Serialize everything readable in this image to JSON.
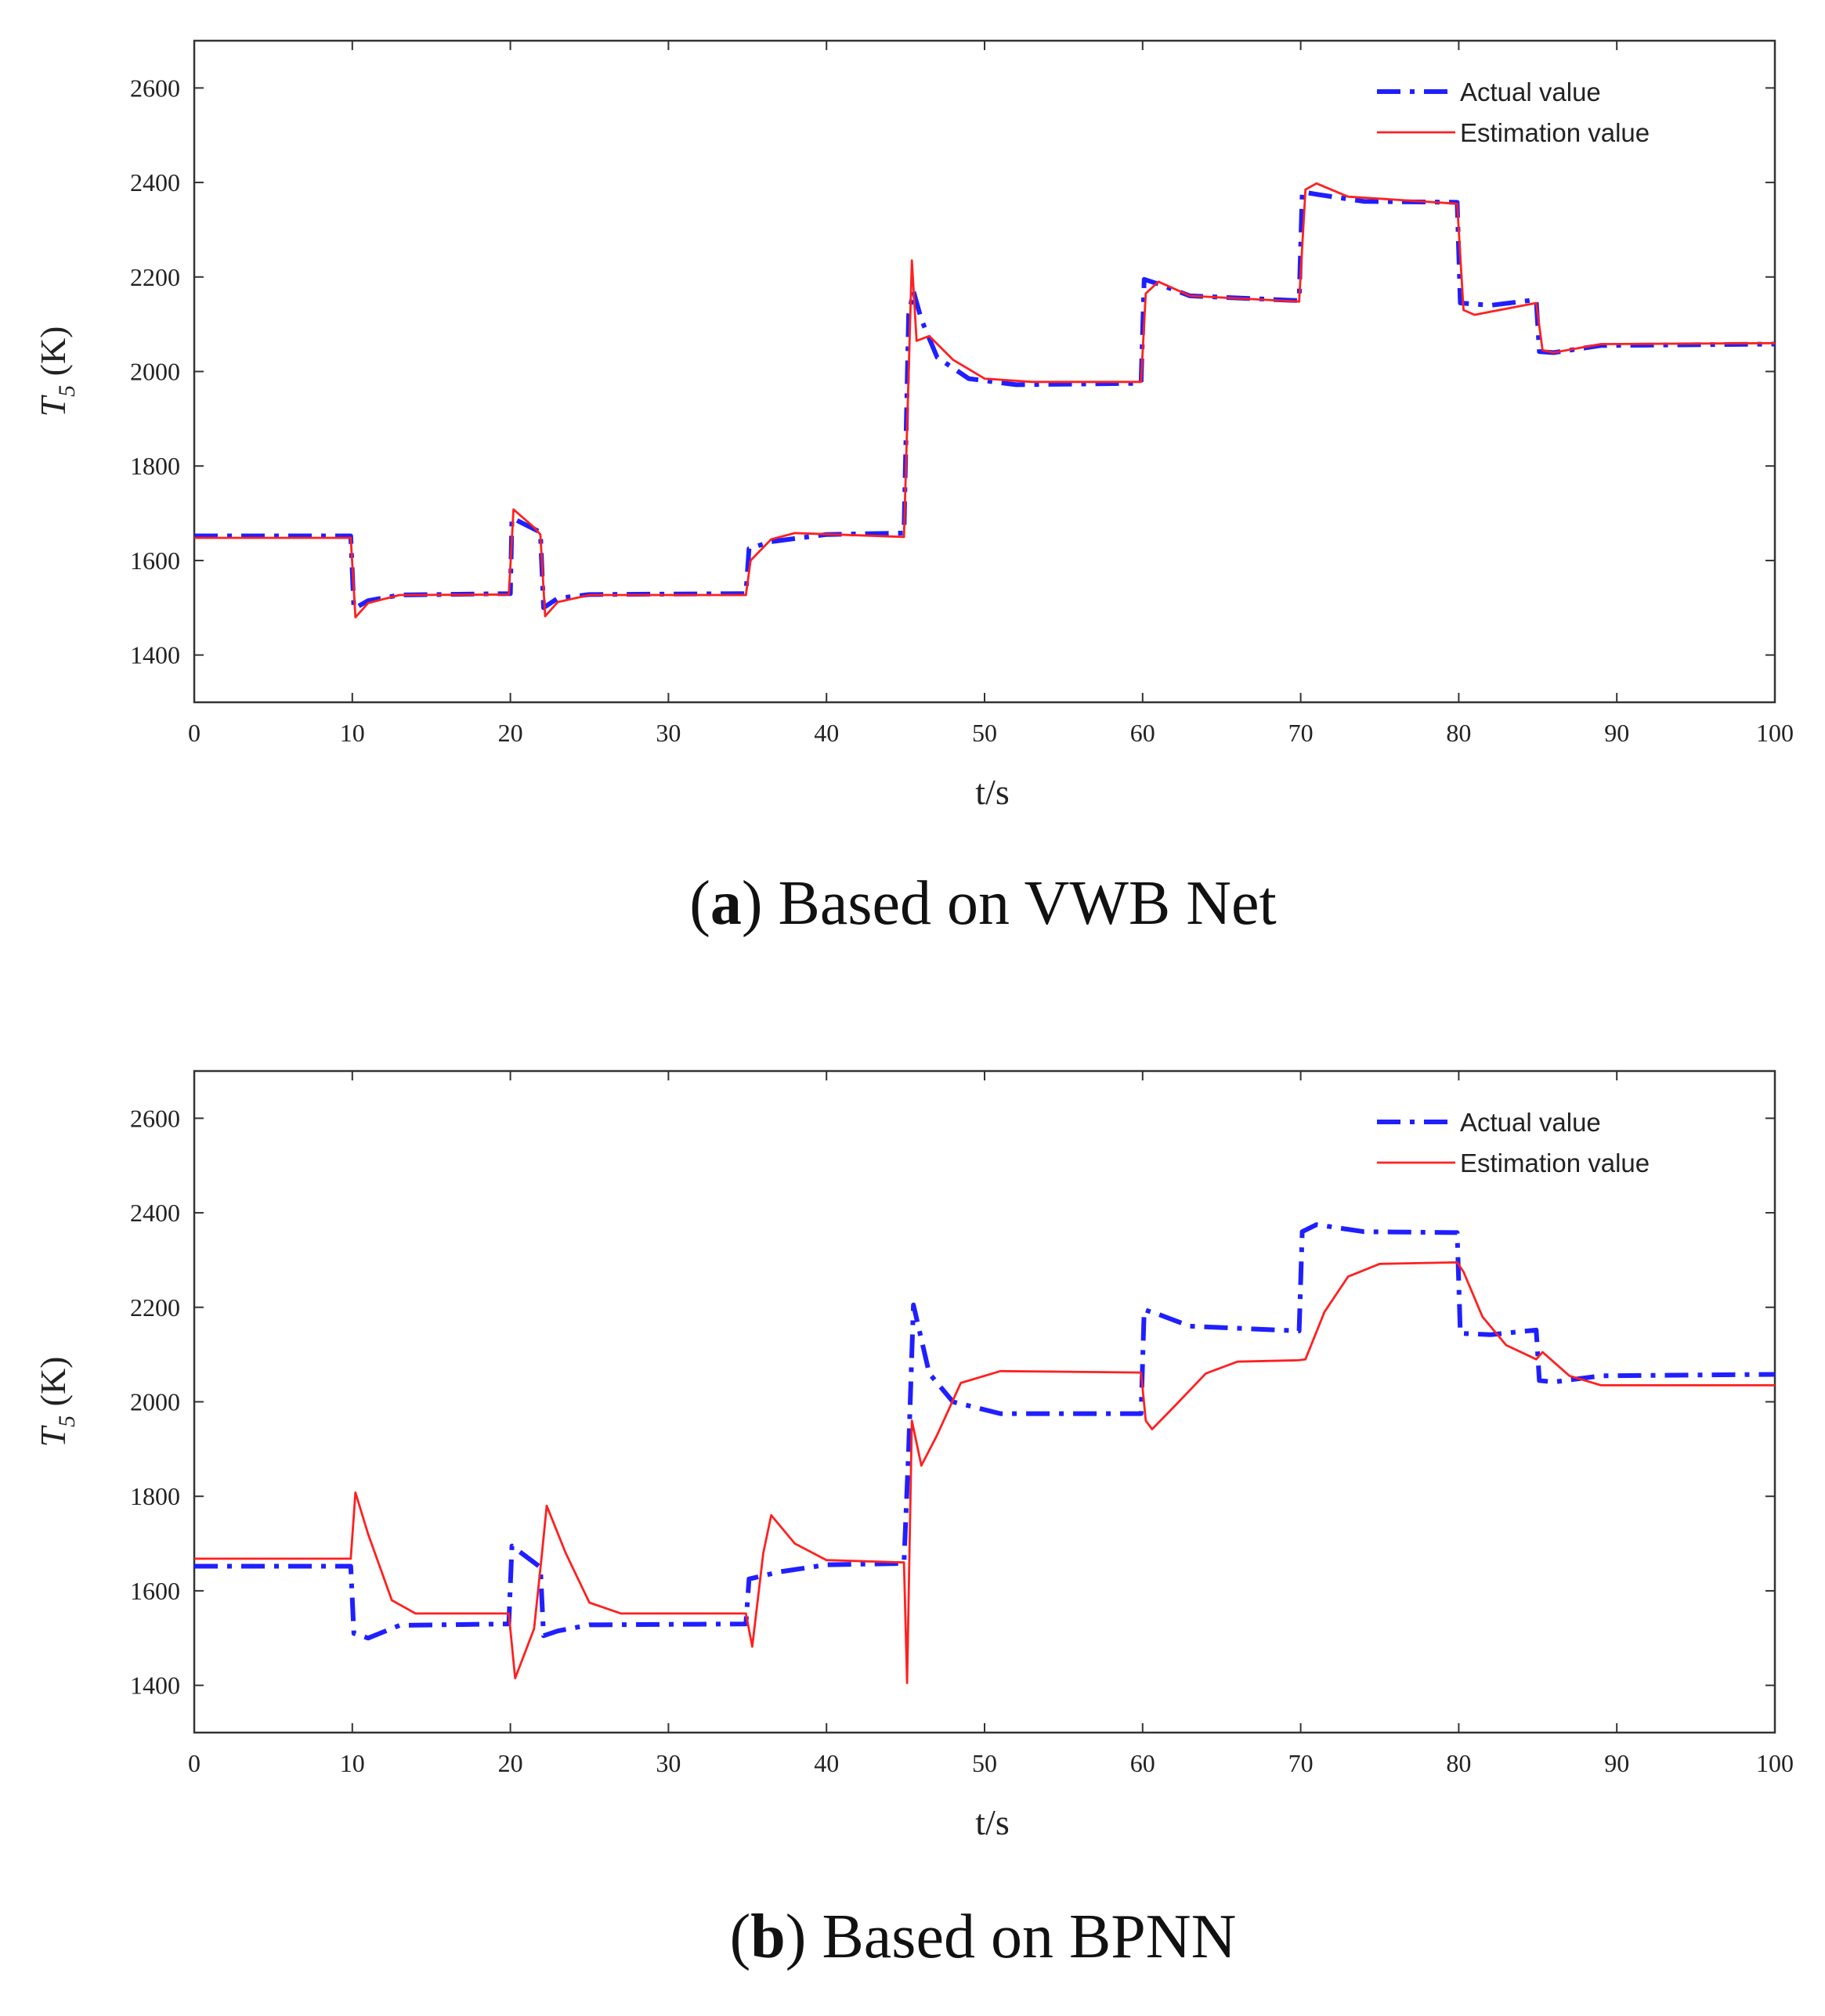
{
  "chart_data": [
    {
      "type": "line",
      "panel_label": "a",
      "caption_open": "(",
      "caption_close": ")",
      "caption_text": " Based on VWB Net",
      "xlabel": "t/s",
      "ylabel_main": "T",
      "ylabel_sub": "5",
      "ylabel_unit": " (K)",
      "xlim": [
        0,
        100
      ],
      "ylim": [
        1300,
        2700
      ],
      "xticks": [
        0,
        10,
        20,
        30,
        40,
        50,
        60,
        70,
        80,
        90,
        100
      ],
      "yticks": [
        1400,
        1600,
        1800,
        2000,
        2200,
        2400,
        2600
      ],
      "legend_position": "top-right",
      "series": [
        {
          "name": "Actual value",
          "color": "#1f1fff",
          "style": "dashdot",
          "points": [
            [
              0,
              1652
            ],
            [
              9.9,
              1652
            ],
            [
              10.1,
              1498
            ],
            [
              11,
              1515
            ],
            [
              13,
              1527
            ],
            [
              20,
              1530
            ],
            [
              20.1,
              1690
            ],
            [
              21.9,
              1660
            ],
            [
              22.1,
              1500
            ],
            [
              23,
              1520
            ],
            [
              25,
              1528
            ],
            [
              34.9,
              1530
            ],
            [
              35.1,
              1625
            ],
            [
              36.5,
              1640
            ],
            [
              40,
              1655
            ],
            [
              44.9,
              1658
            ],
            [
              45.2,
              2120
            ],
            [
              45.5,
              2170
            ],
            [
              46,
              2110
            ],
            [
              47,
              2030
            ],
            [
              49,
              1985
            ],
            [
              52,
              1972
            ],
            [
              59.9,
              1975
            ],
            [
              60.1,
              2195
            ],
            [
              61,
              2185
            ],
            [
              63,
              2160
            ],
            [
              69.9,
              2150
            ],
            [
              70.1,
              2380
            ],
            [
              71,
              2375
            ],
            [
              74,
              2360
            ],
            [
              79.9,
              2358
            ],
            [
              80.1,
              2145
            ],
            [
              82,
              2140
            ],
            [
              84.9,
              2152
            ],
            [
              85.1,
              2042
            ],
            [
              86,
              2040
            ],
            [
              89,
              2055
            ],
            [
              100,
              2058
            ]
          ]
        },
        {
          "name": "Estimation value",
          "color": "#ff2020",
          "style": "solid",
          "points": [
            [
              0,
              1648
            ],
            [
              9.9,
              1648
            ],
            [
              10.2,
              1480
            ],
            [
              11,
              1510
            ],
            [
              13,
              1527
            ],
            [
              19.9,
              1528
            ],
            [
              20.2,
              1708
            ],
            [
              21.5,
              1670
            ],
            [
              21.9,
              1655
            ],
            [
              22.2,
              1482
            ],
            [
              23,
              1512
            ],
            [
              25,
              1527
            ],
            [
              34.9,
              1527
            ],
            [
              35.2,
              1600
            ],
            [
              36.5,
              1645
            ],
            [
              38,
              1658
            ],
            [
              44.9,
              1650
            ],
            [
              45.4,
              2235
            ],
            [
              45.7,
              2065
            ],
            [
              46.5,
              2075
            ],
            [
              48,
              2025
            ],
            [
              50,
              1985
            ],
            [
              53,
              1978
            ],
            [
              59.9,
              1978
            ],
            [
              60.2,
              2165
            ],
            [
              61,
              2190
            ],
            [
              63,
              2160
            ],
            [
              69.9,
              2148
            ],
            [
              70.3,
              2385
            ],
            [
              71,
              2398
            ],
            [
              73,
              2370
            ],
            [
              79.9,
              2355
            ],
            [
              80.3,
              2130
            ],
            [
              81,
              2120
            ],
            [
              84.9,
              2145
            ],
            [
              85.3,
              2045
            ],
            [
              86,
              2040
            ],
            [
              89,
              2058
            ],
            [
              100,
              2060
            ]
          ]
        }
      ]
    },
    {
      "type": "line",
      "panel_label": "b",
      "caption_open": "(",
      "caption_close": ")",
      "caption_text": " Based on BPNN",
      "xlabel": "t/s",
      "ylabel_main": "T",
      "ylabel_sub": "5",
      "ylabel_unit": " (K)",
      "xlim": [
        0,
        100
      ],
      "ylim": [
        1300,
        2700
      ],
      "xticks": [
        0,
        10,
        20,
        30,
        40,
        50,
        60,
        70,
        80,
        90,
        100
      ],
      "yticks": [
        1400,
        1600,
        1800,
        2000,
        2200,
        2400,
        2600
      ],
      "legend_position": "top-right",
      "series": [
        {
          "name": "Actual value",
          "color": "#1f1fff",
          "style": "dashdot",
          "points": [
            [
              0,
              1652
            ],
            [
              9.9,
              1652
            ],
            [
              10.1,
              1510
            ],
            [
              11,
              1500
            ],
            [
              13,
              1527
            ],
            [
              19.9,
              1530
            ],
            [
              20.1,
              1695
            ],
            [
              21.9,
              1650
            ],
            [
              22.1,
              1505
            ],
            [
              23,
              1515
            ],
            [
              25,
              1528
            ],
            [
              34.9,
              1530
            ],
            [
              35.1,
              1625
            ],
            [
              37,
              1640
            ],
            [
              40,
              1655
            ],
            [
              44.9,
              1658
            ],
            [
              45.2,
              1900
            ],
            [
              45.5,
              2205
            ],
            [
              46.5,
              2060
            ],
            [
              48,
              2000
            ],
            [
              51,
              1975
            ],
            [
              59.9,
              1975
            ],
            [
              60.1,
              2195
            ],
            [
              61,
              2185
            ],
            [
              63,
              2160
            ],
            [
              69.9,
              2150
            ],
            [
              70.1,
              2360
            ],
            [
              71,
              2375
            ],
            [
              74,
              2360
            ],
            [
              79.9,
              2358
            ],
            [
              80.1,
              2145
            ],
            [
              82,
              2142
            ],
            [
              84.9,
              2152
            ],
            [
              85.1,
              2045
            ],
            [
              86,
              2042
            ],
            [
              89,
              2055
            ],
            [
              100,
              2058
            ]
          ]
        },
        {
          "name": "Estimation value",
          "color": "#ff2020",
          "style": "solid",
          "points": [
            [
              0,
              1668
            ],
            [
              9.9,
              1668
            ],
            [
              10.2,
              1808
            ],
            [
              11,
              1720
            ],
            [
              12.5,
              1580
            ],
            [
              14,
              1552
            ],
            [
              19.9,
              1552
            ],
            [
              20.3,
              1415
            ],
            [
              21.5,
              1520
            ],
            [
              22,
              1680
            ],
            [
              22.3,
              1780
            ],
            [
              23.5,
              1680
            ],
            [
              25,
              1575
            ],
            [
              27,
              1552
            ],
            [
              34.9,
              1552
            ],
            [
              35.3,
              1482
            ],
            [
              36,
              1680
            ],
            [
              36.5,
              1760
            ],
            [
              38,
              1700
            ],
            [
              40,
              1665
            ],
            [
              44.9,
              1660
            ],
            [
              45.1,
              1405
            ],
            [
              45.4,
              1960
            ],
            [
              46,
              1865
            ],
            [
              47,
              1930
            ],
            [
              48.5,
              2040
            ],
            [
              51,
              2065
            ],
            [
              59.9,
              2062
            ],
            [
              60.2,
              1960
            ],
            [
              60.6,
              1942
            ],
            [
              62,
              1990
            ],
            [
              64,
              2060
            ],
            [
              66,
              2085
            ],
            [
              69.9,
              2088
            ],
            [
              70.3,
              2090
            ],
            [
              71.5,
              2190
            ],
            [
              73,
              2265
            ],
            [
              75,
              2292
            ],
            [
              79.9,
              2295
            ],
            [
              80.3,
              2275
            ],
            [
              81.5,
              2180
            ],
            [
              83,
              2120
            ],
            [
              84.9,
              2090
            ],
            [
              85.3,
              2105
            ],
            [
              87,
              2055
            ],
            [
              89,
              2035
            ],
            [
              100,
              2035
            ]
          ]
        }
      ]
    }
  ]
}
